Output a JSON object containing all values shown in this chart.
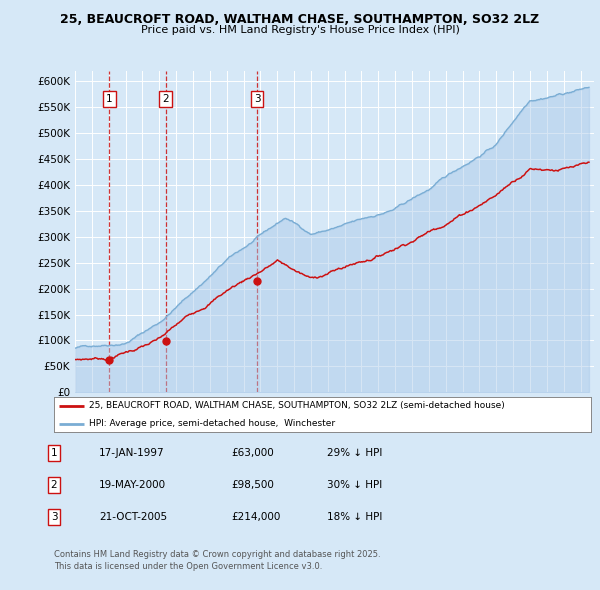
{
  "title_line1": "25, BEAUCROFT ROAD, WALTHAM CHASE, SOUTHAMPTON, SO32 2LZ",
  "title_line2": "Price paid vs. HM Land Registry's House Price Index (HPI)",
  "bg_color": "#d6e8f7",
  "plot_bg_color": "#d6e8f7",
  "grid_color": "#ffffff",
  "hpi_color": "#7aadd4",
  "hpi_fill_color": "#a8c8e8",
  "price_color": "#cc1111",
  "dashed_color": "#cc1111",
  "ylim": [
    0,
    620000
  ],
  "yticks": [
    0,
    50000,
    100000,
    150000,
    200000,
    250000,
    300000,
    350000,
    400000,
    450000,
    500000,
    550000,
    600000
  ],
  "ytick_labels": [
    "£0",
    "£50K",
    "£100K",
    "£150K",
    "£200K",
    "£250K",
    "£300K",
    "£350K",
    "£400K",
    "£450K",
    "£500K",
    "£550K",
    "£600K"
  ],
  "xlim_start": 1995.0,
  "xlim_end": 2025.8,
  "sales": [
    {
      "label": "1",
      "date_num": 1997.04,
      "price": 63000
    },
    {
      "label": "2",
      "date_num": 2000.38,
      "price": 98500
    },
    {
      "label": "3",
      "date_num": 2005.8,
      "price": 214000
    }
  ],
  "legend_property_label": "25, BEAUCROFT ROAD, WALTHAM CHASE, SOUTHAMPTON, SO32 2LZ (semi-detached house)",
  "legend_hpi_label": "HPI: Average price, semi-detached house,  Winchester",
  "table_entries": [
    {
      "num": "1",
      "date": "17-JAN-1997",
      "price": "£63,000",
      "hpi": "29% ↓ HPI"
    },
    {
      "num": "2",
      "date": "19-MAY-2000",
      "price": "£98,500",
      "hpi": "30% ↓ HPI"
    },
    {
      "num": "3",
      "date": "21-OCT-2005",
      "price": "£214,000",
      "hpi": "18% ↓ HPI"
    }
  ],
  "footnote": "Contains HM Land Registry data © Crown copyright and database right 2025.\nThis data is licensed under the Open Government Licence v3.0."
}
